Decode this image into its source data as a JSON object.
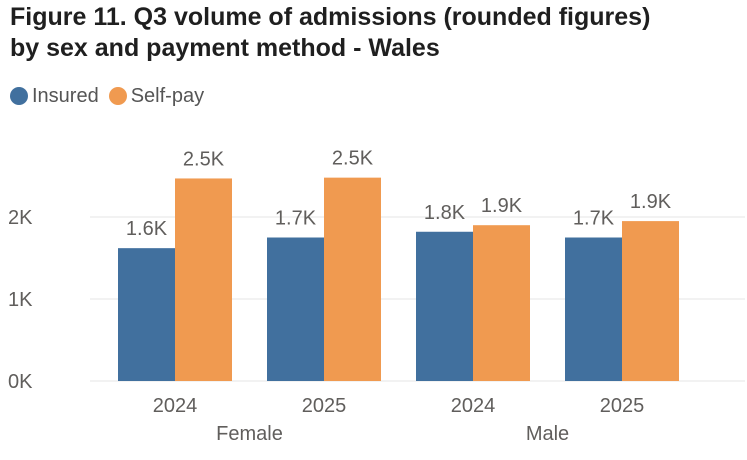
{
  "chart_data": {
    "type": "bar",
    "title_line1": "Figure 11. Q3 volume of admissions (rounded figures)",
    "title_line2": "by sex and payment method - Wales",
    "groups": [
      "Female",
      "Male"
    ],
    "categories": [
      "2024",
      "2025",
      "2024",
      "2025"
    ],
    "category_groups": [
      "Female",
      "Female",
      "Male",
      "Male"
    ],
    "series": [
      {
        "name": "Insured",
        "color": "#41709E",
        "values": [
          1620,
          1750,
          1820,
          1750
        ],
        "labels": [
          "1.6K",
          "1.7K",
          "1.8K",
          "1.7K"
        ]
      },
      {
        "name": "Self-pay",
        "color": "#F09A50",
        "values": [
          2470,
          2480,
          1900,
          1950
        ],
        "labels": [
          "2.5K",
          "2.5K",
          "1.9K",
          "1.9K"
        ]
      }
    ],
    "yticks": [
      0,
      1000,
      2000
    ],
    "ytick_labels": [
      "0K",
      "1K",
      "2K"
    ],
    "ylim": [
      0,
      2700
    ],
    "grid": true,
    "legend_position": "top-left"
  }
}
